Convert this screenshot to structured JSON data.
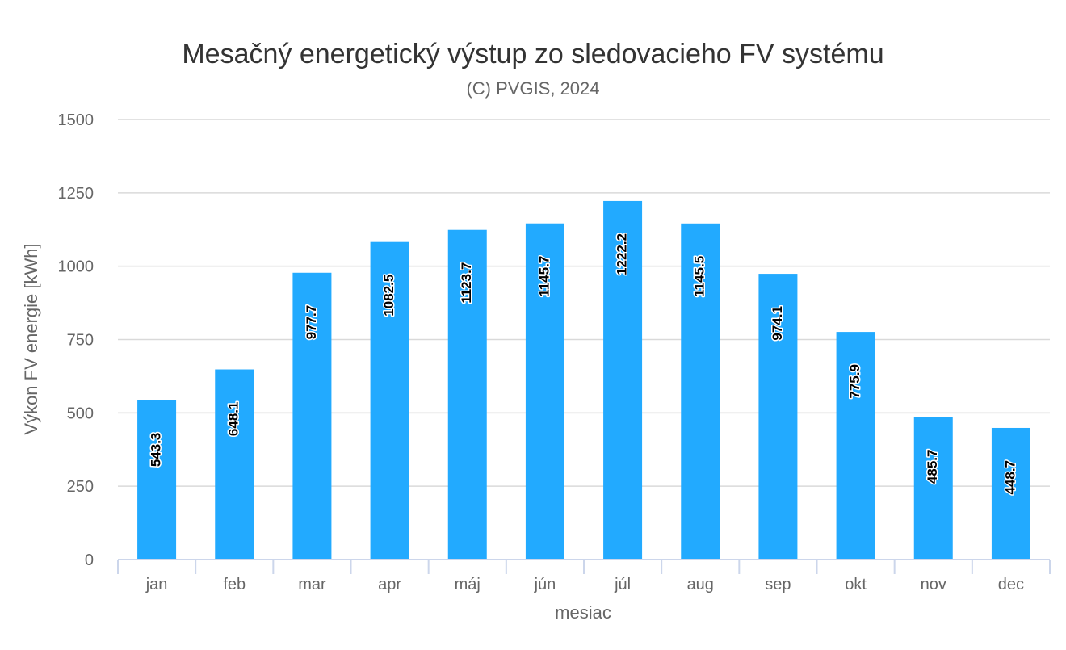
{
  "chart_data": {
    "type": "bar",
    "title": "Mesačný energetický výstup zo sledovacieho FV systému",
    "subtitle": "(C) PVGIS, 2024",
    "xlabel": "mesiac",
    "ylabel": "Výkon FV energie [kWh]",
    "categories": [
      "jan",
      "feb",
      "mar",
      "apr",
      "máj",
      "jún",
      "júl",
      "aug",
      "sep",
      "okt",
      "nov",
      "dec"
    ],
    "values": [
      543.3,
      648.1,
      977.7,
      1082.5,
      1123.7,
      1145.7,
      1222.2,
      1145.5,
      974.1,
      775.9,
      485.7,
      448.7
    ],
    "value_labels": [
      "543.3",
      "648.1",
      "977.7",
      "1082.5",
      "1123.7",
      "1145.7",
      "1222.2",
      "1145.5",
      "974.1",
      "775.9",
      "485.7",
      "448.7"
    ],
    "ylim": [
      0,
      1500
    ],
    "yticks": [
      "0",
      "250",
      "500",
      "750",
      "1000",
      "1250",
      "1500"
    ],
    "grid": true,
    "legend": false,
    "bar_color": "#22aaff"
  }
}
